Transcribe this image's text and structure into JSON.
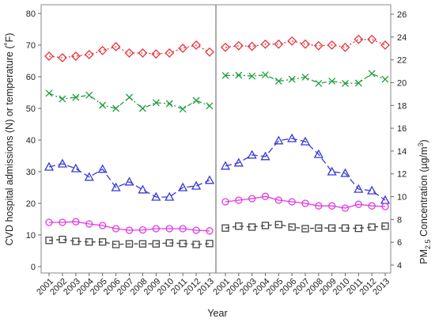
{
  "chart_data": {
    "type": "line",
    "xlabel": "Year",
    "ylabel_left": "CVD hospital admissions (N) or temperature (˚F)",
    "ylabel_right_parts": [
      "PM",
      "2.5",
      " Concentration (µg/m",
      "3",
      ")"
    ],
    "ylim_left": [
      0,
      80
    ],
    "yticks_left": [
      0,
      10,
      20,
      30,
      40,
      50,
      60,
      70,
      80
    ],
    "ylim_right": [
      4,
      26
    ],
    "yticks_right": [
      4,
      6,
      8,
      10,
      12,
      14,
      16,
      18,
      20,
      22,
      24,
      26
    ],
    "grid": false,
    "panels": [
      {
        "name": "left",
        "x": [
          "2001",
          "2002",
          "2003",
          "2004",
          "2005",
          "2006",
          "2007",
          "2008",
          "2009",
          "2010",
          "2011",
          "2012",
          "2013"
        ],
        "series": [
          {
            "color": "#e8333b",
            "marker": "diamond",
            "dash": "2,3",
            "values": [
              66.5,
              66,
              66.5,
              67,
              68.3,
              69.5,
              67.5,
              67.5,
              67.2,
              67.5,
              69,
              70,
              67.8
            ]
          },
          {
            "color": "#1e9e3e",
            "marker": "x",
            "dash": "6,3,2,3",
            "values": [
              54.8,
              53,
              53.5,
              54.2,
              51,
              50,
              53.5,
              50,
              51.8,
              51.5,
              49.8,
              52.5,
              50.8
            ]
          },
          {
            "color": "#3a3ad6",
            "marker": "triangle",
            "dash": "8,4",
            "values": [
              31.5,
              32.5,
              31,
              28.3,
              30.8,
              25,
              26.8,
              24.3,
              22,
              22,
              25,
              25.5,
              27.3
            ]
          },
          {
            "color": "#e23ae2",
            "marker": "circle",
            "dash": "",
            "values": [
              14,
              14,
              14.2,
              13.5,
              13,
              12,
              11.5,
              11.6,
              12,
              12,
              12,
              11.5,
              11.3
            ]
          },
          {
            "color": "#444444",
            "marker": "square",
            "dash": "5,4",
            "values": [
              8.3,
              8.6,
              8,
              7.8,
              7.8,
              7,
              7.2,
              7.2,
              7.2,
              7.5,
              7.3,
              7,
              7.3
            ]
          }
        ]
      },
      {
        "name": "right",
        "x": [
          "2001",
          "2002",
          "2003",
          "2004",
          "2005",
          "2006",
          "2007",
          "2008",
          "2009",
          "2010",
          "2011",
          "2012",
          "2013"
        ],
        "series": [
          {
            "color": "#e8333b",
            "marker": "diamond",
            "dash": "2,3",
            "values": [
              69.3,
              69.8,
              69.6,
              70.3,
              70.3,
              71.3,
              70.3,
              69.8,
              70,
              69.3,
              71.8,
              71.8,
              70
            ]
          },
          {
            "color": "#1e9e3e",
            "marker": "x",
            "dash": "6,3,2,3",
            "values": [
              60.4,
              60.5,
              60.2,
              60.6,
              58.6,
              59.2,
              59.9,
              57.9,
              58.6,
              57.9,
              58,
              61,
              59.2
            ]
          },
          {
            "color": "#3a3ad6",
            "marker": "triangle",
            "dash": "8,4",
            "values": [
              31.8,
              32.8,
              35.3,
              34.8,
              39.8,
              40.5,
              39.5,
              35.5,
              30,
              29.5,
              24.5,
              24,
              21
            ]
          },
          {
            "color": "#e23ae2",
            "marker": "circle",
            "dash": "",
            "values": [
              20.5,
              21,
              21.5,
              22.2,
              21,
              20.5,
              20,
              19.2,
              19.2,
              18.5,
              19.7,
              19.2,
              19
            ]
          },
          {
            "color": "#444444",
            "marker": "square",
            "dash": "5,4",
            "values": [
              12.2,
              12.8,
              12.5,
              13,
              13.3,
              12.5,
              12,
              12.2,
              12.2,
              12.2,
              12.1,
              12.5,
              12.8
            ]
          }
        ]
      }
    ]
  }
}
